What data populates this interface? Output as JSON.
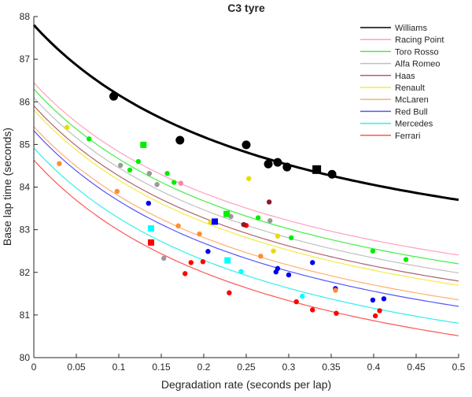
{
  "chart_data": {
    "type": "scatter",
    "title": "C3 tyre",
    "xlabel": "Degradation rate (seconds per lap)",
    "ylabel": "Base lap time (seconds)",
    "xlim": [
      0,
      0.5
    ],
    "ylim": [
      80,
      88
    ],
    "xticks": [
      "0",
      "0.05",
      "0.1",
      "0.15",
      "0.2",
      "0.25",
      "0.3",
      "0.35",
      "0.4",
      "0.45",
      "0.5"
    ],
    "xtick_values": [
      0,
      0.05,
      0.1,
      0.15,
      0.2,
      0.25,
      0.3,
      0.35,
      0.4,
      0.45,
      0.5
    ],
    "yticks": [
      "80",
      "81",
      "82",
      "83",
      "84",
      "85",
      "86",
      "87",
      "88"
    ],
    "ytick_values": [
      80,
      81,
      82,
      83,
      84,
      85,
      86,
      87,
      88
    ],
    "grid": false,
    "legend_position": "top-right",
    "fit_model": "y = A + B/(x + 0.3)",
    "series": [
      {
        "name": "Williams",
        "line_color": "#000000",
        "point_color": "#000000",
        "A": 81.24,
        "B": 1.968,
        "bold": true
      },
      {
        "name": "Racing Point",
        "line_color": "#ffa0c0",
        "point_color": "#ff80a8",
        "A": 79.98,
        "B": 1.94
      },
      {
        "name": "Toro Rosso",
        "line_color": "#44ee44",
        "point_color": "#00ee00",
        "A": 79.74,
        "B": 1.968
      },
      {
        "name": "Alfa Romeo",
        "line_color": "#c0c0c0",
        "point_color": "#999999",
        "A": 79.52,
        "B": 1.973
      },
      {
        "name": "Haas",
        "line_color": "#b06070",
        "point_color": "#8b1a2a",
        "A": 79.33,
        "B": 1.973
      },
      {
        "name": "Renault",
        "line_color": "#eeee44",
        "point_color": "#e6dd00",
        "A": 79.23,
        "B": 1.973
      },
      {
        "name": "McLaren",
        "line_color": "#ffb070",
        "point_color": "#ff8c30",
        "A": 78.92,
        "B": 1.949
      },
      {
        "name": "Red Bull",
        "line_color": "#5555ff",
        "point_color": "#0000ee",
        "A": 78.73,
        "B": 1.978
      },
      {
        "name": "Mercedes",
        "line_color": "#33eeee",
        "point_color": "#00ffff",
        "A": 78.34,
        "B": 1.973
      },
      {
        "name": "Ferrari",
        "line_color": "#ff5555",
        "point_color": "#ff0000",
        "A": 78.04,
        "B": 1.978
      }
    ],
    "points": [
      {
        "team": "Williams",
        "shape": "circle",
        "x": 0.094,
        "y": 86.13
      },
      {
        "team": "Williams",
        "shape": "circle",
        "x": 0.172,
        "y": 85.1
      },
      {
        "team": "Williams",
        "shape": "circle",
        "x": 0.25,
        "y": 84.99
      },
      {
        "team": "Williams",
        "shape": "circle",
        "x": 0.276,
        "y": 84.54
      },
      {
        "team": "Williams",
        "shape": "circle",
        "x": 0.287,
        "y": 84.58
      },
      {
        "team": "Williams",
        "shape": "circle",
        "x": 0.298,
        "y": 84.47
      },
      {
        "team": "Williams",
        "shape": "circle",
        "x": 0.351,
        "y": 84.3
      },
      {
        "team": "Williams",
        "shape": "square",
        "x": 0.333,
        "y": 84.41
      },
      {
        "team": "Renault",
        "shape": "circle",
        "x": 0.039,
        "y": 85.4
      },
      {
        "team": "Toro Rosso",
        "shape": "circle",
        "x": 0.065,
        "y": 85.13
      },
      {
        "team": "Toro Rosso",
        "shape": "square",
        "x": 0.129,
        "y": 84.99
      },
      {
        "team": "Alfa Romeo",
        "shape": "circle",
        "x": 0.102,
        "y": 84.51
      },
      {
        "team": "Toro Rosso",
        "shape": "circle",
        "x": 0.123,
        "y": 84.6
      },
      {
        "team": "Toro Rosso",
        "shape": "circle",
        "x": 0.113,
        "y": 84.4
      },
      {
        "team": "Alfa Romeo",
        "shape": "circle",
        "x": 0.136,
        "y": 84.32
      },
      {
        "team": "Toro Rosso",
        "shape": "circle",
        "x": 0.157,
        "y": 84.32
      },
      {
        "team": "Alfa Romeo",
        "shape": "circle",
        "x": 0.145,
        "y": 84.06
      },
      {
        "team": "Toro Rosso",
        "shape": "circle",
        "x": 0.165,
        "y": 84.11
      },
      {
        "team": "Racing Point",
        "shape": "circle",
        "x": 0.173,
        "y": 84.09
      },
      {
        "team": "McLaren",
        "shape": "circle",
        "x": 0.03,
        "y": 84.55
      },
      {
        "team": "McLaren",
        "shape": "circle",
        "x": 0.098,
        "y": 83.9
      },
      {
        "team": "Red Bull",
        "shape": "circle",
        "x": 0.135,
        "y": 83.62
      },
      {
        "team": "Renault",
        "shape": "circle",
        "x": 0.253,
        "y": 84.2
      },
      {
        "team": "Alfa Romeo",
        "shape": "circle",
        "x": 0.232,
        "y": 83.31
      },
      {
        "team": "Toro Rosso",
        "shape": "square",
        "x": 0.227,
        "y": 83.37
      },
      {
        "team": "Renault",
        "shape": "circle",
        "x": 0.208,
        "y": 83.17
      },
      {
        "team": "Red Bull",
        "shape": "square",
        "x": 0.213,
        "y": 83.19
      },
      {
        "team": "Ferrari",
        "shape": "circle",
        "x": 0.25,
        "y": 83.1
      },
      {
        "team": "Haas",
        "shape": "circle",
        "x": 0.247,
        "y": 83.12
      },
      {
        "team": "Haas",
        "shape": "circle",
        "x": 0.277,
        "y": 83.65
      },
      {
        "team": "Mercedes",
        "shape": "square",
        "x": 0.138,
        "y": 83.03
      },
      {
        "team": "McLaren",
        "shape": "circle",
        "x": 0.17,
        "y": 83.09
      },
      {
        "team": "McLaren",
        "shape": "circle",
        "x": 0.195,
        "y": 82.9
      },
      {
        "team": "Ferrari",
        "shape": "square",
        "x": 0.138,
        "y": 82.7
      },
      {
        "team": "Red Bull",
        "shape": "circle",
        "x": 0.205,
        "y": 82.49
      },
      {
        "team": "Mercedes",
        "shape": "square",
        "x": 0.228,
        "y": 82.28
      },
      {
        "team": "Alfa Romeo",
        "shape": "circle",
        "x": 0.153,
        "y": 82.33
      },
      {
        "team": "Ferrari",
        "shape": "circle",
        "x": 0.185,
        "y": 82.23
      },
      {
        "team": "Ferrari",
        "shape": "circle",
        "x": 0.199,
        "y": 82.25
      },
      {
        "team": "Toro Rosso",
        "shape": "circle",
        "x": 0.264,
        "y": 83.28
      },
      {
        "team": "Alfa Romeo",
        "shape": "circle",
        "x": 0.278,
        "y": 83.21
      },
      {
        "team": "Renault",
        "shape": "circle",
        "x": 0.287,
        "y": 82.85
      },
      {
        "team": "Toro Rosso",
        "shape": "circle",
        "x": 0.303,
        "y": 82.81
      },
      {
        "team": "Renault",
        "shape": "circle",
        "x": 0.282,
        "y": 82.5
      },
      {
        "team": "McLaren",
        "shape": "circle",
        "x": 0.267,
        "y": 82.38
      },
      {
        "team": "Red Bull",
        "shape": "circle",
        "x": 0.328,
        "y": 82.23
      },
      {
        "team": "Toro Rosso",
        "shape": "circle",
        "x": 0.399,
        "y": 82.5
      },
      {
        "team": "Toro Rosso",
        "shape": "circle",
        "x": 0.438,
        "y": 82.3
      },
      {
        "team": "Ferrari",
        "shape": "circle",
        "x": 0.178,
        "y": 81.97
      },
      {
        "team": "Mercedes",
        "shape": "circle",
        "x": 0.244,
        "y": 82.02
      },
      {
        "team": "Red Bull",
        "shape": "circle",
        "x": 0.287,
        "y": 82.09
      },
      {
        "team": "Red Bull",
        "shape": "circle",
        "x": 0.285,
        "y": 82.01
      },
      {
        "team": "Red Bull",
        "shape": "circle",
        "x": 0.3,
        "y": 81.94
      },
      {
        "team": "Red Bull",
        "shape": "circle",
        "x": 0.355,
        "y": 81.62
      },
      {
        "team": "McLaren",
        "shape": "circle",
        "x": 0.355,
        "y": 81.58
      },
      {
        "team": "Ferrari",
        "shape": "circle",
        "x": 0.23,
        "y": 81.52
      },
      {
        "team": "Mercedes",
        "shape": "circle",
        "x": 0.316,
        "y": 81.44
      },
      {
        "team": "Red Bull",
        "shape": "circle",
        "x": 0.399,
        "y": 81.35
      },
      {
        "team": "Red Bull",
        "shape": "circle",
        "x": 0.412,
        "y": 81.38
      },
      {
        "team": "Ferrari",
        "shape": "circle",
        "x": 0.309,
        "y": 81.31
      },
      {
        "team": "Ferrari",
        "shape": "circle",
        "x": 0.328,
        "y": 81.12
      },
      {
        "team": "Ferrari",
        "shape": "circle",
        "x": 0.356,
        "y": 81.04
      },
      {
        "team": "Ferrari",
        "shape": "circle",
        "x": 0.407,
        "y": 81.1
      },
      {
        "team": "Ferrari",
        "shape": "circle",
        "x": 0.402,
        "y": 80.98
      }
    ]
  }
}
